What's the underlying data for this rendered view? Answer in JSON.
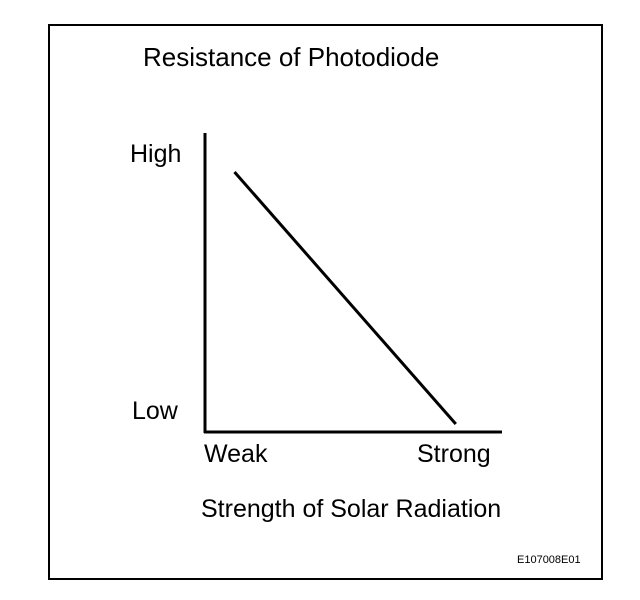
{
  "chart_data": {
    "type": "line",
    "title": "Resistance of Photodiode",
    "xlabel": "Strength of Solar Radiation",
    "ylabel": "",
    "x_tick_labels": [
      "Weak",
      "Strong"
    ],
    "y_tick_labels": [
      "High",
      "Low"
    ],
    "xlim": [
      0,
      1
    ],
    "ylim": [
      0,
      1
    ],
    "grid": false,
    "legend": "none",
    "series": [
      {
        "x": [
          0.1,
          0.85
        ],
        "y": [
          0.87,
          0.03
        ]
      }
    ],
    "line_color": "#000000"
  },
  "figure_id": "E107008E01"
}
